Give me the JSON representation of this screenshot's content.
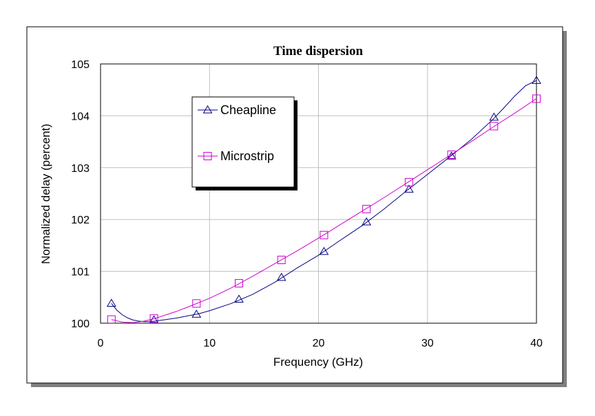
{
  "chart_data": {
    "type": "line",
    "title": "Time dispersion",
    "xlabel": "Frequency (GHz)",
    "ylabel": "Normalized delay (percent)",
    "xlim": [
      0,
      40
    ],
    "ylim": [
      100,
      105
    ],
    "xticks": [
      "0",
      "10",
      "20",
      "30",
      "40"
    ],
    "yticks": [
      "100",
      "101",
      "102",
      "103",
      "104",
      "105"
    ],
    "grid": true,
    "legend_placement": "upper-left inside plot",
    "series": [
      {
        "name": "Cheapline",
        "color": "#000080",
        "marker": "triangle",
        "x": [
          1,
          4.9,
          8.8,
          12.7,
          16.6,
          20.5,
          24.4,
          28.3,
          32.2,
          36.1,
          40
        ],
        "y": [
          100.38,
          100.06,
          100.17,
          100.46,
          100.88,
          101.38,
          101.95,
          102.58,
          103.22,
          103.97,
          104.68
        ],
        "curve": {
          "x": [
            1,
            1.5,
            2,
            2.5,
            3,
            3.5,
            4,
            4.5,
            5,
            6,
            7,
            8,
            9,
            10,
            12,
            14,
            16,
            18,
            20,
            22,
            24,
            26,
            28,
            30,
            32,
            34,
            36,
            37,
            38,
            39,
            40
          ],
          "y": [
            100.38,
            100.25,
            100.16,
            100.1,
            100.06,
            100.04,
            100.03,
            100.03,
            100.04,
            100.07,
            100.1,
            100.14,
            100.18,
            100.24,
            100.38,
            100.56,
            100.79,
            101.06,
            101.31,
            101.6,
            101.88,
            102.2,
            102.54,
            102.87,
            103.2,
            103.54,
            103.93,
            104.15,
            104.38,
            104.58,
            104.68
          ]
        }
      },
      {
        "name": "Microstrip",
        "color": "#cc00cc",
        "marker": "square",
        "x": [
          1,
          4.9,
          8.8,
          12.7,
          16.6,
          20.5,
          24.4,
          28.3,
          32.2,
          36.1,
          40
        ],
        "y": [
          100.07,
          100.09,
          100.38,
          100.77,
          101.22,
          101.7,
          102.2,
          102.72,
          103.25,
          103.8,
          104.33
        ],
        "curve": {
          "x": [
            1,
            2,
            3,
            4,
            5,
            6,
            7,
            8,
            10,
            12,
            14,
            16,
            18,
            20,
            22,
            24,
            26,
            28,
            30,
            32,
            34,
            36,
            38,
            40
          ],
          "y": [
            100.07,
            100.02,
            100.01,
            100.04,
            100.09,
            100.16,
            100.23,
            100.31,
            100.48,
            100.68,
            100.91,
            101.15,
            101.39,
            101.64,
            101.9,
            102.16,
            102.42,
            102.69,
            102.96,
            103.23,
            103.5,
            103.78,
            104.05,
            104.33
          ]
        }
      }
    ]
  }
}
